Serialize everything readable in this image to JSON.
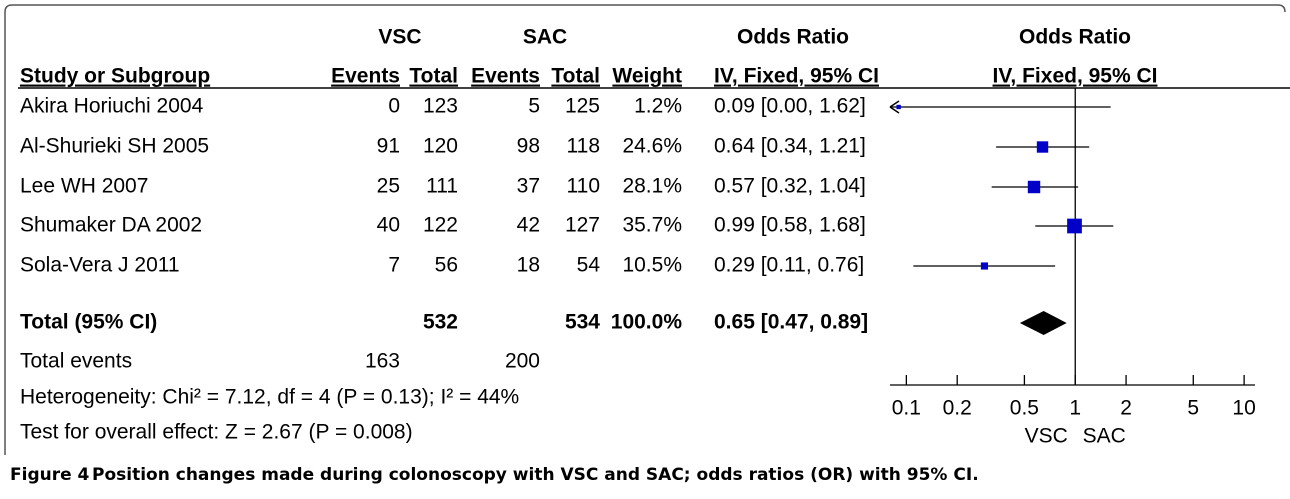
{
  "chart_data": {
    "type": "forest",
    "header": {
      "group1": "VSC",
      "group2": "SAC",
      "or_group": "Odds Ratio",
      "plot_group": "Odds Ratio",
      "study": "Study or Subgroup",
      "events1": "Events",
      "total1": "Total",
      "events2": "Events",
      "total2": "Total",
      "weight": "Weight",
      "or_method": "IV, Fixed, 95% CI",
      "plot_method": "IV, Fixed, 95% CI"
    },
    "studies": [
      {
        "name": "Akira Horiuchi 2004",
        "events1": 0,
        "total1": 123,
        "events2": 5,
        "total2": 125,
        "weight": 1.2,
        "weight_label": "1.2%",
        "or": 0.09,
        "ci": [
          0.0,
          1.62
        ],
        "or_label": "0.09 [0.00, 1.62]"
      },
      {
        "name": "Al-Shurieki SH 2005",
        "events1": 91,
        "total1": 120,
        "events2": 98,
        "total2": 118,
        "weight": 24.6,
        "weight_label": "24.6%",
        "or": 0.64,
        "ci": [
          0.34,
          1.21
        ],
        "or_label": "0.64 [0.34, 1.21]"
      },
      {
        "name": "Lee WH 2007",
        "events1": 25,
        "total1": 111,
        "events2": 37,
        "total2": 110,
        "weight": 28.1,
        "weight_label": "28.1%",
        "or": 0.57,
        "ci": [
          0.32,
          1.04
        ],
        "or_label": "0.57 [0.32, 1.04]"
      },
      {
        "name": "Shumaker DA 2002",
        "events1": 40,
        "total1": 122,
        "events2": 42,
        "total2": 127,
        "weight": 35.7,
        "weight_label": "35.7%",
        "or": 0.99,
        "ci": [
          0.58,
          1.68
        ],
        "or_label": "0.99 [0.58, 1.68]"
      },
      {
        "name": "Sola-Vera J 2011",
        "events1": 7,
        "total1": 56,
        "events2": 18,
        "total2": 54,
        "weight": 10.5,
        "weight_label": "10.5%",
        "or": 0.29,
        "ci": [
          0.11,
          0.76
        ],
        "or_label": "0.29 [0.11, 0.76]"
      }
    ],
    "total": {
      "name": "Total (95% CI)",
      "total1": 532,
      "total2": 534,
      "weight": 100.0,
      "weight_label": "100.0%",
      "or": 0.65,
      "ci": [
        0.47,
        0.89
      ],
      "or_label": "0.65 [0.47, 0.89]"
    },
    "total_events": {
      "name": "Total events",
      "events1": 163,
      "events2": 200
    },
    "heterogeneity": "Heterogeneity: Chi² = 7.12, df = 4 (P = 0.13); I² = 44%",
    "overall_effect": "Test for overall effect: Z = 2.67 (P = 0.008)",
    "log_x": true,
    "xlim": [
      0.08,
      11.6
    ],
    "xticks": [
      0.1,
      0.2,
      0.5,
      1,
      2,
      5,
      10
    ],
    "xlabel_left": "VSC",
    "xlabel_right": "SAC",
    "color": "#0000c8",
    "caption_label": "Figure 4",
    "caption": "Position changes made during colonoscopy with VSC and SAC; odds ratios (OR) with 95% CI."
  }
}
